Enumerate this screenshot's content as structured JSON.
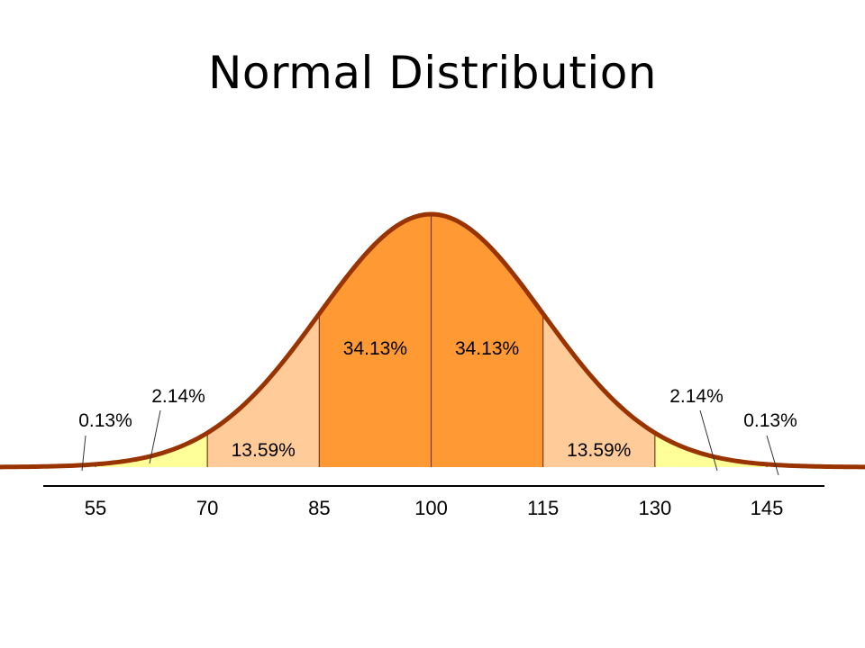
{
  "title": "Normal Distribution",
  "chart_data": {
    "type": "area",
    "distribution": "normal",
    "mean": 100,
    "sd": 15,
    "x_ticks": [
      "55",
      "70",
      "85",
      "100",
      "115",
      "130",
      "145"
    ],
    "xlim": [
      55,
      145
    ],
    "regions": [
      {
        "from": 40,
        "to": 55,
        "label": "0.13%",
        "color": "#ffff99"
      },
      {
        "from": 55,
        "to": 70,
        "label": "2.14%",
        "color": "#ffff99"
      },
      {
        "from": 70,
        "to": 85,
        "label": "13.59%",
        "color": "#ffcc99"
      },
      {
        "from": 85,
        "to": 100,
        "label": "34.13%",
        "color": "#ff9933"
      },
      {
        "from": 100,
        "to": 115,
        "label": "34.13%",
        "color": "#ff9933"
      },
      {
        "from": 115,
        "to": 130,
        "label": "13.59%",
        "color": "#ffcc99"
      },
      {
        "from": 130,
        "to": 145,
        "label": "2.14%",
        "color": "#ffff99"
      },
      {
        "from": 145,
        "to": 160,
        "label": "0.13%",
        "color": "#ffff99"
      }
    ],
    "curve_color": "#993300",
    "grid": false
  }
}
